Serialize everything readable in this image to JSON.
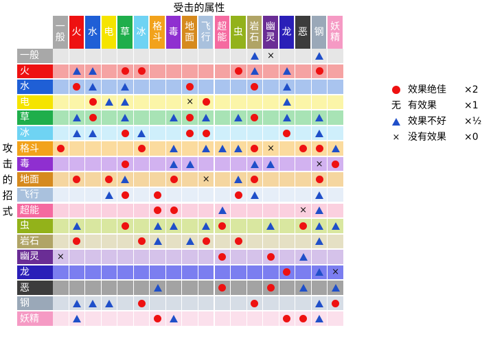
{
  "chart_data": {
    "type": "table",
    "col_title": "受击的属性",
    "row_title": "攻击的招式",
    "types": [
      {
        "name": "一般",
        "color": "#a8a8a8",
        "light": "#e6e6e6",
        "text": "#ffffff"
      },
      {
        "name": "火",
        "color": "#ee1111",
        "light": "#f5a3a3",
        "text": "#ffffff"
      },
      {
        "name": "水",
        "color": "#1f5fd6",
        "light": "#a9c4ef",
        "text": "#ffffff"
      },
      {
        "name": "电",
        "color": "#f5e400",
        "light": "#fbf5a8",
        "text": "#ffffff"
      },
      {
        "name": "草",
        "color": "#1fae4b",
        "light": "#a8e3b5",
        "text": "#ffffff"
      },
      {
        "name": "冰",
        "color": "#6fd3f3",
        "light": "#cfeffb",
        "text": "#ffffff"
      },
      {
        "name": "格斗",
        "color": "#f2a21b",
        "light": "#fbdb9e",
        "text": "#ffffff"
      },
      {
        "name": "毒",
        "color": "#8f2fd0",
        "light": "#d2b2f0",
        "text": "#ffffff"
      },
      {
        "name": "地面",
        "color": "#d68a1e",
        "light": "#f5d6a0",
        "text": "#ffffff"
      },
      {
        "name": "飞行",
        "color": "#a9c1dd",
        "light": "#e6eef8",
        "text": "#ffffff"
      },
      {
        "name": "超能",
        "color": "#f56aa0",
        "light": "#fbd0df",
        "text": "#ffffff"
      },
      {
        "name": "虫",
        "color": "#93b21a",
        "light": "#d9e7a0",
        "text": "#ffffff"
      },
      {
        "name": "岩石",
        "color": "#b0a466",
        "light": "#e5e0c4",
        "text": "#ffffff"
      },
      {
        "name": "幽灵",
        "color": "#6a2d95",
        "light": "#d5c2ea",
        "text": "#ffffff"
      },
      {
        "name": "龙",
        "color": "#2a1fb8",
        "light": "#7b7ef0",
        "text": "#ffffff"
      },
      {
        "name": "恶",
        "color": "#3c3c3c",
        "light": "#a3a3a3",
        "text": "#ffffff"
      },
      {
        "name": "钢",
        "color": "#9aa8b8",
        "light": "#d6dde6",
        "text": "#ffffff"
      },
      {
        "name": "妖精",
        "color": "#f59ac4",
        "light": "#fbe0ec",
        "text": "#ffffff"
      }
    ],
    "matrix": [
      [
        "",
        "",
        "",
        "",
        "",
        "",
        "",
        "",
        "",
        "",
        "",
        "",
        "T",
        "X",
        "",
        "",
        "T",
        ""
      ],
      [
        "",
        "T",
        "T",
        "",
        "O",
        "O",
        "",
        "",
        "",
        "",
        "",
        "O",
        "T",
        "",
        "T",
        "",
        "O",
        ""
      ],
      [
        "",
        "O",
        "T",
        "",
        "T",
        "",
        "",
        "",
        "O",
        "",
        "",
        "",
        "O",
        "",
        "T",
        "",
        "",
        ""
      ],
      [
        "",
        "",
        "O",
        "T",
        "T",
        "",
        "",
        "",
        "X",
        "O",
        "",
        "",
        "",
        "",
        "T",
        "",
        "",
        ""
      ],
      [
        "",
        "T",
        "O",
        "",
        "T",
        "",
        "",
        "T",
        "O",
        "T",
        "",
        "T",
        "O",
        "",
        "T",
        "",
        "T",
        ""
      ],
      [
        "",
        "T",
        "T",
        "",
        "O",
        "T",
        "",
        "",
        "O",
        "O",
        "",
        "",
        "",
        "",
        "O",
        "",
        "T",
        ""
      ],
      [
        "O",
        "",
        "",
        "",
        "",
        "O",
        "",
        "T",
        "",
        "T",
        "T",
        "T",
        "O",
        "X",
        "",
        "O",
        "O",
        "T"
      ],
      [
        "",
        "",
        "",
        "",
        "O",
        "",
        "",
        "T",
        "T",
        "",
        "",
        "",
        "T",
        "T",
        "",
        "",
        "X",
        "O"
      ],
      [
        "",
        "O",
        "",
        "O",
        "T",
        "",
        "",
        "O",
        "",
        "X",
        "",
        "T",
        "O",
        "",
        "",
        "",
        "O",
        ""
      ],
      [
        "",
        "",
        "",
        "T",
        "O",
        "",
        "O",
        "",
        "",
        "",
        "",
        "O",
        "T",
        "",
        "",
        "",
        "T",
        ""
      ],
      [
        "",
        "",
        "",
        "",
        "",
        "",
        "O",
        "O",
        "",
        "",
        "T",
        "",
        "",
        "",
        "",
        "X",
        "T",
        ""
      ],
      [
        "",
        "T",
        "",
        "",
        "O",
        "",
        "T",
        "T",
        "",
        "T",
        "O",
        "",
        "",
        "T",
        "",
        "O",
        "T",
        "T"
      ],
      [
        "",
        "O",
        "",
        "",
        "",
        "O",
        "T",
        "",
        "T",
        "O",
        "",
        "O",
        "",
        "",
        "",
        "",
        "T",
        ""
      ],
      [
        "X",
        "",
        "",
        "",
        "",
        "",
        "",
        "",
        "",
        "",
        "O",
        "",
        "",
        "O",
        "",
        "T",
        "",
        ""
      ],
      [
        "",
        "",
        "",
        "",
        "",
        "",
        "",
        "",
        "",
        "",
        "",
        "",
        "",
        "",
        "O",
        "",
        "T",
        "X"
      ],
      [
        "",
        "",
        "",
        "",
        "",
        "",
        "T",
        "",
        "",
        "",
        "O",
        "",
        "",
        "O",
        "",
        "T",
        "",
        "T"
      ],
      [
        "",
        "T",
        "T",
        "T",
        "",
        "O",
        "",
        "",
        "",
        "",
        "",
        "",
        "O",
        "",
        "",
        "",
        "T",
        "O"
      ],
      [
        "",
        "T",
        "",
        "",
        "",
        "",
        "O",
        "T",
        "",
        "",
        "",
        "",
        "",
        "",
        "O",
        "O",
        "T",
        ""
      ]
    ],
    "legend": [
      {
        "symbol": "O",
        "label": "效果绝佳",
        "mult": "×2"
      },
      {
        "symbol": "无",
        "label": "有效果",
        "mult": "×1"
      },
      {
        "symbol": "T",
        "label": "效果不好",
        "mult": "×½"
      },
      {
        "symbol": "X",
        "label": "没有效果",
        "mult": "×0"
      }
    ]
  }
}
